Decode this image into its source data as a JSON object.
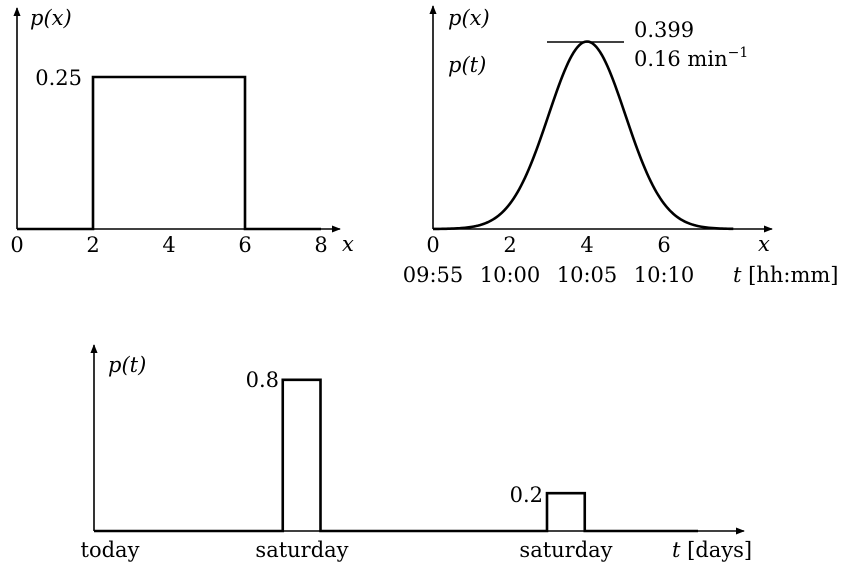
{
  "chart_data": [
    {
      "type": "line",
      "ylabel": "p(x)",
      "xlabel": "x",
      "x_ticks": [
        "0",
        "2",
        "4",
        "6",
        "8"
      ],
      "xlim": [
        0,
        8
      ],
      "ylim": [
        0,
        0.3
      ],
      "y_annotations": [
        {
          "label": "0.25",
          "value": 0.25
        }
      ],
      "series": [
        {
          "x": [
            0,
            2,
            2,
            6,
            6,
            8
          ],
          "y": [
            0,
            0,
            0.25,
            0.25,
            0,
            0
          ]
        }
      ]
    },
    {
      "type": "line",
      "ylabel": "p(x)",
      "ylabel2": "p(t)",
      "xlabel": "x",
      "xlabel2": "t [hh:mm]",
      "x_ticks": [
        "0",
        "2",
        "4",
        "6"
      ],
      "x_ticks2": [
        "09:55",
        "10:00",
        "10:05",
        "10:10"
      ],
      "xlim": [
        0,
        8
      ],
      "ylim": [
        0,
        0.5
      ],
      "peak": {
        "x": 4,
        "value": 0.399,
        "label_1": "0.399",
        "label_2": "0.16 min",
        "label_2_sup": "−1"
      },
      "series": [
        {
          "function": "normal_pdf",
          "mean": 4,
          "sd": 1,
          "x": [
            0,
            7.8
          ]
        }
      ]
    },
    {
      "type": "line",
      "ylabel": "p(t)",
      "xlabel": "t [days]",
      "x_ticks": [
        "today",
        "saturday",
        "saturday"
      ],
      "xlim": [
        0,
        16
      ],
      "ylim": [
        0,
        1
      ],
      "y_annotations": [
        {
          "label": "0.8",
          "value": 0.8
        },
        {
          "label": "0.2",
          "value": 0.2
        }
      ],
      "series": [
        {
          "x": [
            0,
            5,
            5,
            6,
            6,
            12,
            12,
            13,
            13,
            16
          ],
          "y": [
            0,
            0,
            0.8,
            0.8,
            0,
            0,
            0.2,
            0.2,
            0,
            0
          ]
        }
      ]
    }
  ]
}
